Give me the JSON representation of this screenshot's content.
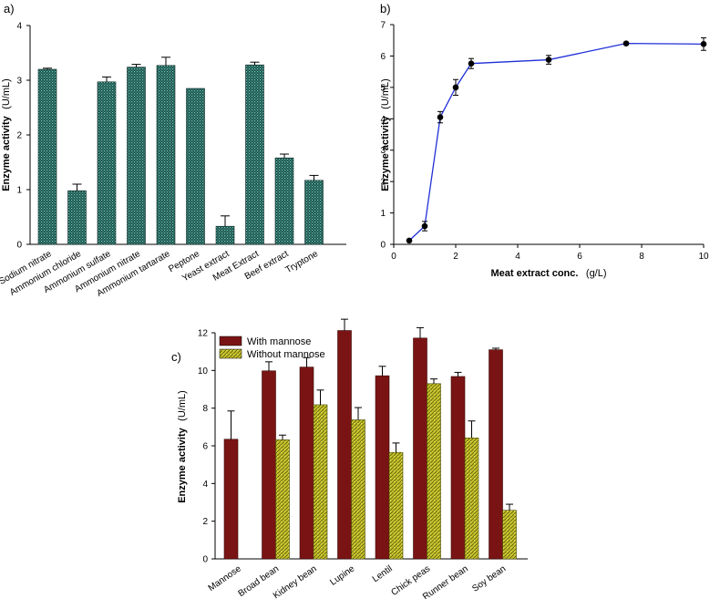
{
  "colors": {
    "panel_a_bar": "#1d4a44",
    "panel_a_bar_dot": "#6fd2c4",
    "panel_b_line": "#1f2fd8",
    "panel_c_with": "#7a1414",
    "panel_c_without": "#c8c428",
    "panel_c_without_dot": "#5a5a0e"
  },
  "chart_data": [
    {
      "type": "bar",
      "panel_label": "a)",
      "title": "",
      "xlabel": "",
      "ylabel": "Enzyme activity",
      "ylabel_unit": "(U/mL)",
      "ylim": [
        0,
        4
      ],
      "yticks": [
        "0",
        "1",
        "2",
        "3",
        "4"
      ],
      "categories": [
        "Sodium nitrate",
        "Ammonium chloride",
        "Ammonium sulfate",
        "Ammonium nitrate",
        "Ammonium tartarate",
        "Peptone",
        "Yeast extract",
        "Meat Extract",
        "Beef extract",
        "Tryptone"
      ],
      "values": [
        3.2,
        0.98,
        2.97,
        3.24,
        3.27,
        2.85,
        0.33,
        3.28,
        1.58,
        1.17
      ],
      "errors": [
        0.02,
        0.12,
        0.09,
        0.05,
        0.15,
        0.0,
        0.19,
        0.05,
        0.07,
        0.09
      ]
    },
    {
      "type": "line",
      "panel_label": "b)",
      "title": "",
      "xlabel": "Meat extract conc.",
      "xlabel_unit": "(g/L)",
      "ylabel": "Enzyme activity",
      "ylabel_unit": "(U/mL)",
      "xlim": [
        0,
        10
      ],
      "ylim": [
        0,
        7
      ],
      "xticks": [
        "0",
        "2",
        "4",
        "6",
        "8",
        "10"
      ],
      "yticks": [
        "0",
        "1",
        "2",
        "3",
        "4",
        "5",
        "6",
        "7"
      ],
      "x": [
        0.5,
        1,
        1.5,
        2,
        2.5,
        5,
        7.5,
        10
      ],
      "y": [
        0.12,
        0.58,
        4.05,
        5.0,
        5.76,
        5.88,
        6.4,
        6.38
      ],
      "errors": [
        0.0,
        0.15,
        0.18,
        0.25,
        0.16,
        0.14,
        0.04,
        0.2
      ]
    },
    {
      "type": "bar",
      "panel_label": "c)",
      "title": "",
      "xlabel": "",
      "ylabel": "Enzyme activity",
      "ylabel_unit": "(U/mL)",
      "ylim": [
        0,
        12
      ],
      "yticks": [
        "0",
        "2",
        "4",
        "6",
        "8",
        "10",
        "12"
      ],
      "categories": [
        "Mannose",
        "Broad bean",
        "Kidney bean",
        "Lupine",
        "Lentil",
        "Chick peas",
        "Runner bean",
        "Soy bean"
      ],
      "legend_position": "top-left",
      "series": [
        {
          "name": "With mannose",
          "values": [
            6.35,
            9.98,
            10.18,
            12.12,
            9.72,
            11.72,
            9.68,
            11.1
          ],
          "errors": [
            1.5,
            0.48,
            0.5,
            0.6,
            0.5,
            0.55,
            0.22,
            0.08
          ]
        },
        {
          "name": "Without mannose",
          "values": [
            null,
            6.32,
            8.18,
            7.38,
            5.65,
            9.3,
            6.42,
            2.58
          ],
          "errors": [
            null,
            0.25,
            0.78,
            0.65,
            0.5,
            0.25,
            0.9,
            0.32
          ]
        }
      ]
    }
  ]
}
